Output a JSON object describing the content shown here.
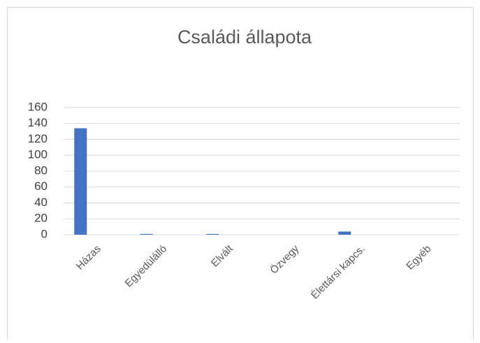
{
  "chart_data": {
    "type": "bar",
    "title": "Családi állapota",
    "categories": [
      "Házas",
      "Egyedülálló",
      "Elvált",
      "Özvegy",
      "Élettársi kapcs.",
      "Egyéb"
    ],
    "values": [
      134,
      1,
      1,
      0,
      4,
      0
    ],
    "color": "#4472c4",
    "ylim": [
      0,
      160
    ],
    "yticks": [
      0,
      20,
      40,
      60,
      80,
      100,
      120,
      140,
      160
    ],
    "grid": true
  }
}
